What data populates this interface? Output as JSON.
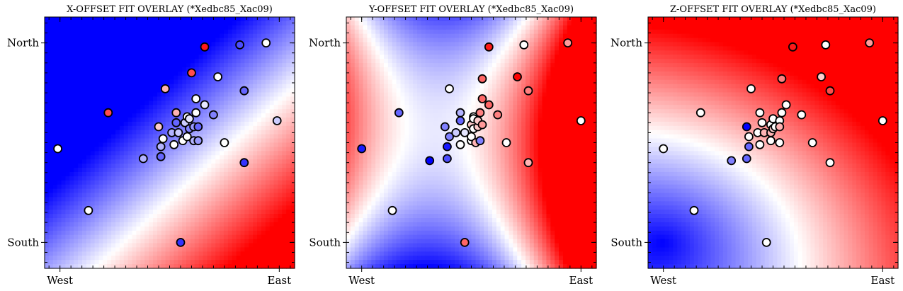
{
  "chart_data": [
    {
      "type": "scatter",
      "title": "X-OFFSET FIT OVERLAY (*Xedbc85_Xac09)",
      "xlabel": "",
      "ylabel": "",
      "xlim": [
        -0.07,
        1.07
      ],
      "ylim": [
        -0.13,
        1.13
      ],
      "x_ticklabels": [
        {
          "value": 0,
          "label": "West"
        },
        {
          "value": 1,
          "label": "East"
        }
      ],
      "y_ticklabels": [
        {
          "value": 0,
          "label": "South"
        },
        {
          "value": 1,
          "label": "North"
        }
      ],
      "colormap": "bwr",
      "background_field": {
        "kind": "plane",
        "a": 1.0,
        "b": -1.0,
        "c": -0.29,
        "scale": 0.6
      },
      "points": [
        {
          "x": -0.01,
          "y": 0.47,
          "c": 0.0
        },
        {
          "x": 0.13,
          "y": 0.16,
          "c": 0.0
        },
        {
          "x": 0.22,
          "y": 0.65,
          "c": 0.7
        },
        {
          "x": 0.38,
          "y": 0.42,
          "c": -0.3
        },
        {
          "x": 0.45,
          "y": 0.58,
          "c": 0.2
        },
        {
          "x": 0.46,
          "y": 0.43,
          "c": -0.6
        },
        {
          "x": 0.46,
          "y": 0.48,
          "c": -0.3
        },
        {
          "x": 0.47,
          "y": 0.52,
          "c": 0.0
        },
        {
          "x": 0.48,
          "y": 0.77,
          "c": 0.3
        },
        {
          "x": 0.51,
          "y": 0.55,
          "c": -0.3
        },
        {
          "x": 0.52,
          "y": 0.49,
          "c": 0.0
        },
        {
          "x": 0.53,
          "y": 0.65,
          "c": 0.3
        },
        {
          "x": 0.53,
          "y": 0.6,
          "c": -0.6
        },
        {
          "x": 0.54,
          "y": 0.55,
          "c": -0.2
        },
        {
          "x": 0.55,
          "y": 0.0,
          "c": -0.8
        },
        {
          "x": 0.56,
          "y": 0.51,
          "c": 0.0
        },
        {
          "x": 0.57,
          "y": 0.6,
          "c": -0.2
        },
        {
          "x": 0.58,
          "y": 0.53,
          "c": 0.0
        },
        {
          "x": 0.58,
          "y": 0.63,
          "c": 0.0
        },
        {
          "x": 0.59,
          "y": 0.57,
          "c": -0.5
        },
        {
          "x": 0.59,
          "y": 0.62,
          "c": -0.1
        },
        {
          "x": 0.6,
          "y": 0.85,
          "c": 0.7
        },
        {
          "x": 0.61,
          "y": 0.58,
          "c": -0.4
        },
        {
          "x": 0.61,
          "y": 0.51,
          "c": -0.3
        },
        {
          "x": 0.62,
          "y": 0.72,
          "c": 0.0
        },
        {
          "x": 0.62,
          "y": 0.65,
          "c": 0.0
        },
        {
          "x": 0.63,
          "y": 0.58,
          "c": -0.6
        },
        {
          "x": 0.63,
          "y": 0.51,
          "c": -0.4
        },
        {
          "x": 0.66,
          "y": 0.69,
          "c": -0.1
        },
        {
          "x": 0.66,
          "y": 0.98,
          "c": 0.9
        },
        {
          "x": 0.7,
          "y": 0.64,
          "c": -0.5
        },
        {
          "x": 0.72,
          "y": 0.83,
          "c": 0.0
        },
        {
          "x": 0.75,
          "y": 0.5,
          "c": 0.0
        },
        {
          "x": 0.82,
          "y": 0.99,
          "c": -0.7
        },
        {
          "x": 0.84,
          "y": 0.4,
          "c": -0.8
        },
        {
          "x": 0.84,
          "y": 0.76,
          "c": -0.6
        },
        {
          "x": 0.94,
          "y": 1.0,
          "c": 0.0
        },
        {
          "x": 0.99,
          "y": 0.61,
          "c": -0.2
        }
      ]
    },
    {
      "type": "scatter",
      "title": "Y-OFFSET FIT OVERLAY (*Xedbc85_Xac09)",
      "xlabel": "",
      "ylabel": "",
      "xlim": [
        -0.07,
        1.07
      ],
      "ylim": [
        -0.13,
        1.13
      ],
      "x_ticklabels": [
        {
          "value": 0,
          "label": "West"
        },
        {
          "value": 1,
          "label": "East"
        }
      ],
      "y_ticklabels": [
        {
          "value": 0,
          "label": "South"
        },
        {
          "value": 1,
          "label": "North"
        }
      ],
      "colormap": "bwr",
      "background_field": {
        "kind": "saddle",
        "x0": 0.47,
        "y0": 0.54,
        "kx": 2.8,
        "ky": 2.8,
        "kxy": 2.2
      },
      "points": [
        {
          "x": 0.0,
          "y": 0.47,
          "c": -0.9
        },
        {
          "x": 0.14,
          "y": 0.16,
          "c": 0.0
        },
        {
          "x": 0.17,
          "y": 0.65,
          "c": -0.6
        },
        {
          "x": 0.31,
          "y": 0.41,
          "c": -1.0
        },
        {
          "x": 0.38,
          "y": 0.58,
          "c": -0.5
        },
        {
          "x": 0.39,
          "y": 0.42,
          "c": -0.7
        },
        {
          "x": 0.39,
          "y": 0.48,
          "c": -0.9
        },
        {
          "x": 0.4,
          "y": 0.53,
          "c": -0.5
        },
        {
          "x": 0.4,
          "y": 0.77,
          "c": 0.0
        },
        {
          "x": 0.43,
          "y": 0.55,
          "c": -0.2
        },
        {
          "x": 0.45,
          "y": 0.49,
          "c": 0.0
        },
        {
          "x": 0.45,
          "y": 0.65,
          "c": -0.3
        },
        {
          "x": 0.45,
          "y": 0.61,
          "c": -0.6
        },
        {
          "x": 0.47,
          "y": 0.55,
          "c": -0.1
        },
        {
          "x": 0.47,
          "y": 0.0,
          "c": 0.6
        },
        {
          "x": 0.5,
          "y": 0.51,
          "c": 0.0
        },
        {
          "x": 0.5,
          "y": 0.59,
          "c": 0.2
        },
        {
          "x": 0.5,
          "y": 0.53,
          "c": 0.0
        },
        {
          "x": 0.51,
          "y": 0.63,
          "c": 0.0
        },
        {
          "x": 0.51,
          "y": 0.57,
          "c": 0.0
        },
        {
          "x": 0.51,
          "y": 0.62,
          "c": 0.0
        },
        {
          "x": 0.52,
          "y": 0.5,
          "c": 0.3
        },
        {
          "x": 0.53,
          "y": 0.58,
          "c": 0.2
        },
        {
          "x": 0.53,
          "y": 0.61,
          "c": 0.2
        },
        {
          "x": 0.54,
          "y": 0.65,
          "c": 0.5
        },
        {
          "x": 0.54,
          "y": 0.51,
          "c": -0.5
        },
        {
          "x": 0.55,
          "y": 0.59,
          "c": 0.4
        },
        {
          "x": 0.55,
          "y": 0.82,
          "c": 0.6
        },
        {
          "x": 0.55,
          "y": 0.72,
          "c": 0.6
        },
        {
          "x": 0.58,
          "y": 0.69,
          "c": 0.6
        },
        {
          "x": 0.58,
          "y": 0.98,
          "c": 0.9
        },
        {
          "x": 0.62,
          "y": 0.64,
          "c": 0.5
        },
        {
          "x": 0.66,
          "y": 0.5,
          "c": 0.0
        },
        {
          "x": 0.71,
          "y": 0.83,
          "c": 1.0
        },
        {
          "x": 0.74,
          "y": 0.99,
          "c": 0.0
        },
        {
          "x": 0.76,
          "y": 0.4,
          "c": 0.3
        },
        {
          "x": 0.76,
          "y": 0.76,
          "c": 0.5
        },
        {
          "x": 0.94,
          "y": 1.0,
          "c": 0.4
        },
        {
          "x": 1.0,
          "y": 0.61,
          "c": 0.0
        }
      ]
    },
    {
      "type": "scatter",
      "title": "Z-OFFSET FIT OVERLAY (*Xedbc85_Xac09)",
      "xlabel": "",
      "ylabel": "",
      "xlim": [
        -0.07,
        1.07
      ],
      "ylim": [
        -0.13,
        1.13
      ],
      "x_ticklabels": [
        {
          "value": 0,
          "label": "West"
        },
        {
          "value": 1,
          "label": "East"
        }
      ],
      "y_ticklabels": [
        {
          "value": 0,
          "label": "South"
        },
        {
          "value": 1,
          "label": "North"
        }
      ],
      "colormap": "bwr",
      "background_field": {
        "kind": "bowl",
        "x0": 0.0,
        "y0": 0.0,
        "k": 1.2,
        "c": -1.0
      },
      "points": [
        {
          "x": 0.0,
          "y": 0.47,
          "c": 0.0
        },
        {
          "x": 0.14,
          "y": 0.16,
          "c": 0.0
        },
        {
          "x": 0.17,
          "y": 0.65,
          "c": 0.0
        },
        {
          "x": 0.31,
          "y": 0.41,
          "c": -0.5
        },
        {
          "x": 0.38,
          "y": 0.58,
          "c": -1.0
        },
        {
          "x": 0.38,
          "y": 0.42,
          "c": -0.6
        },
        {
          "x": 0.39,
          "y": 0.48,
          "c": -0.6
        },
        {
          "x": 0.39,
          "y": 0.53,
          "c": 0.0
        },
        {
          "x": 0.4,
          "y": 0.77,
          "c": 0.0
        },
        {
          "x": 0.43,
          "y": 0.55,
          "c": 0.0
        },
        {
          "x": 0.44,
          "y": 0.49,
          "c": 0.0
        },
        {
          "x": 0.44,
          "y": 0.65,
          "c": 0.0
        },
        {
          "x": 0.45,
          "y": 0.6,
          "c": 0.0
        },
        {
          "x": 0.46,
          "y": 0.55,
          "c": 0.3
        },
        {
          "x": 0.47,
          "y": 0.0,
          "c": 0.0
        },
        {
          "x": 0.49,
          "y": 0.51,
          "c": 0.0
        },
        {
          "x": 0.49,
          "y": 0.59,
          "c": 0.0
        },
        {
          "x": 0.49,
          "y": 0.55,
          "c": 0.3
        },
        {
          "x": 0.5,
          "y": 0.62,
          "c": 0.0
        },
        {
          "x": 0.5,
          "y": 0.57,
          "c": 0.2
        },
        {
          "x": 0.51,
          "y": 0.58,
          "c": 0.0
        },
        {
          "x": 0.53,
          "y": 0.5,
          "c": 0.0
        },
        {
          "x": 0.53,
          "y": 0.61,
          "c": 0.0
        },
        {
          "x": 0.53,
          "y": 0.58,
          "c": 0.3
        },
        {
          "x": 0.54,
          "y": 0.65,
          "c": 0.0
        },
        {
          "x": 0.54,
          "y": 0.82,
          "c": 0.5
        },
        {
          "x": 0.56,
          "y": 0.69,
          "c": 0.0
        },
        {
          "x": 0.59,
          "y": 0.98,
          "c": 0.9
        },
        {
          "x": 0.63,
          "y": 0.64,
          "c": 0.0
        },
        {
          "x": 0.68,
          "y": 0.5,
          "c": 0.0
        },
        {
          "x": 0.72,
          "y": 0.83,
          "c": 0.2
        },
        {
          "x": 0.74,
          "y": 0.99,
          "c": 0.0
        },
        {
          "x": 0.76,
          "y": 0.4,
          "c": 0.0
        },
        {
          "x": 0.76,
          "y": 0.76,
          "c": 0.7
        },
        {
          "x": 0.94,
          "y": 1.0,
          "c": 0.4
        },
        {
          "x": 1.0,
          "y": 0.61,
          "c": 0.0
        }
      ]
    }
  ]
}
